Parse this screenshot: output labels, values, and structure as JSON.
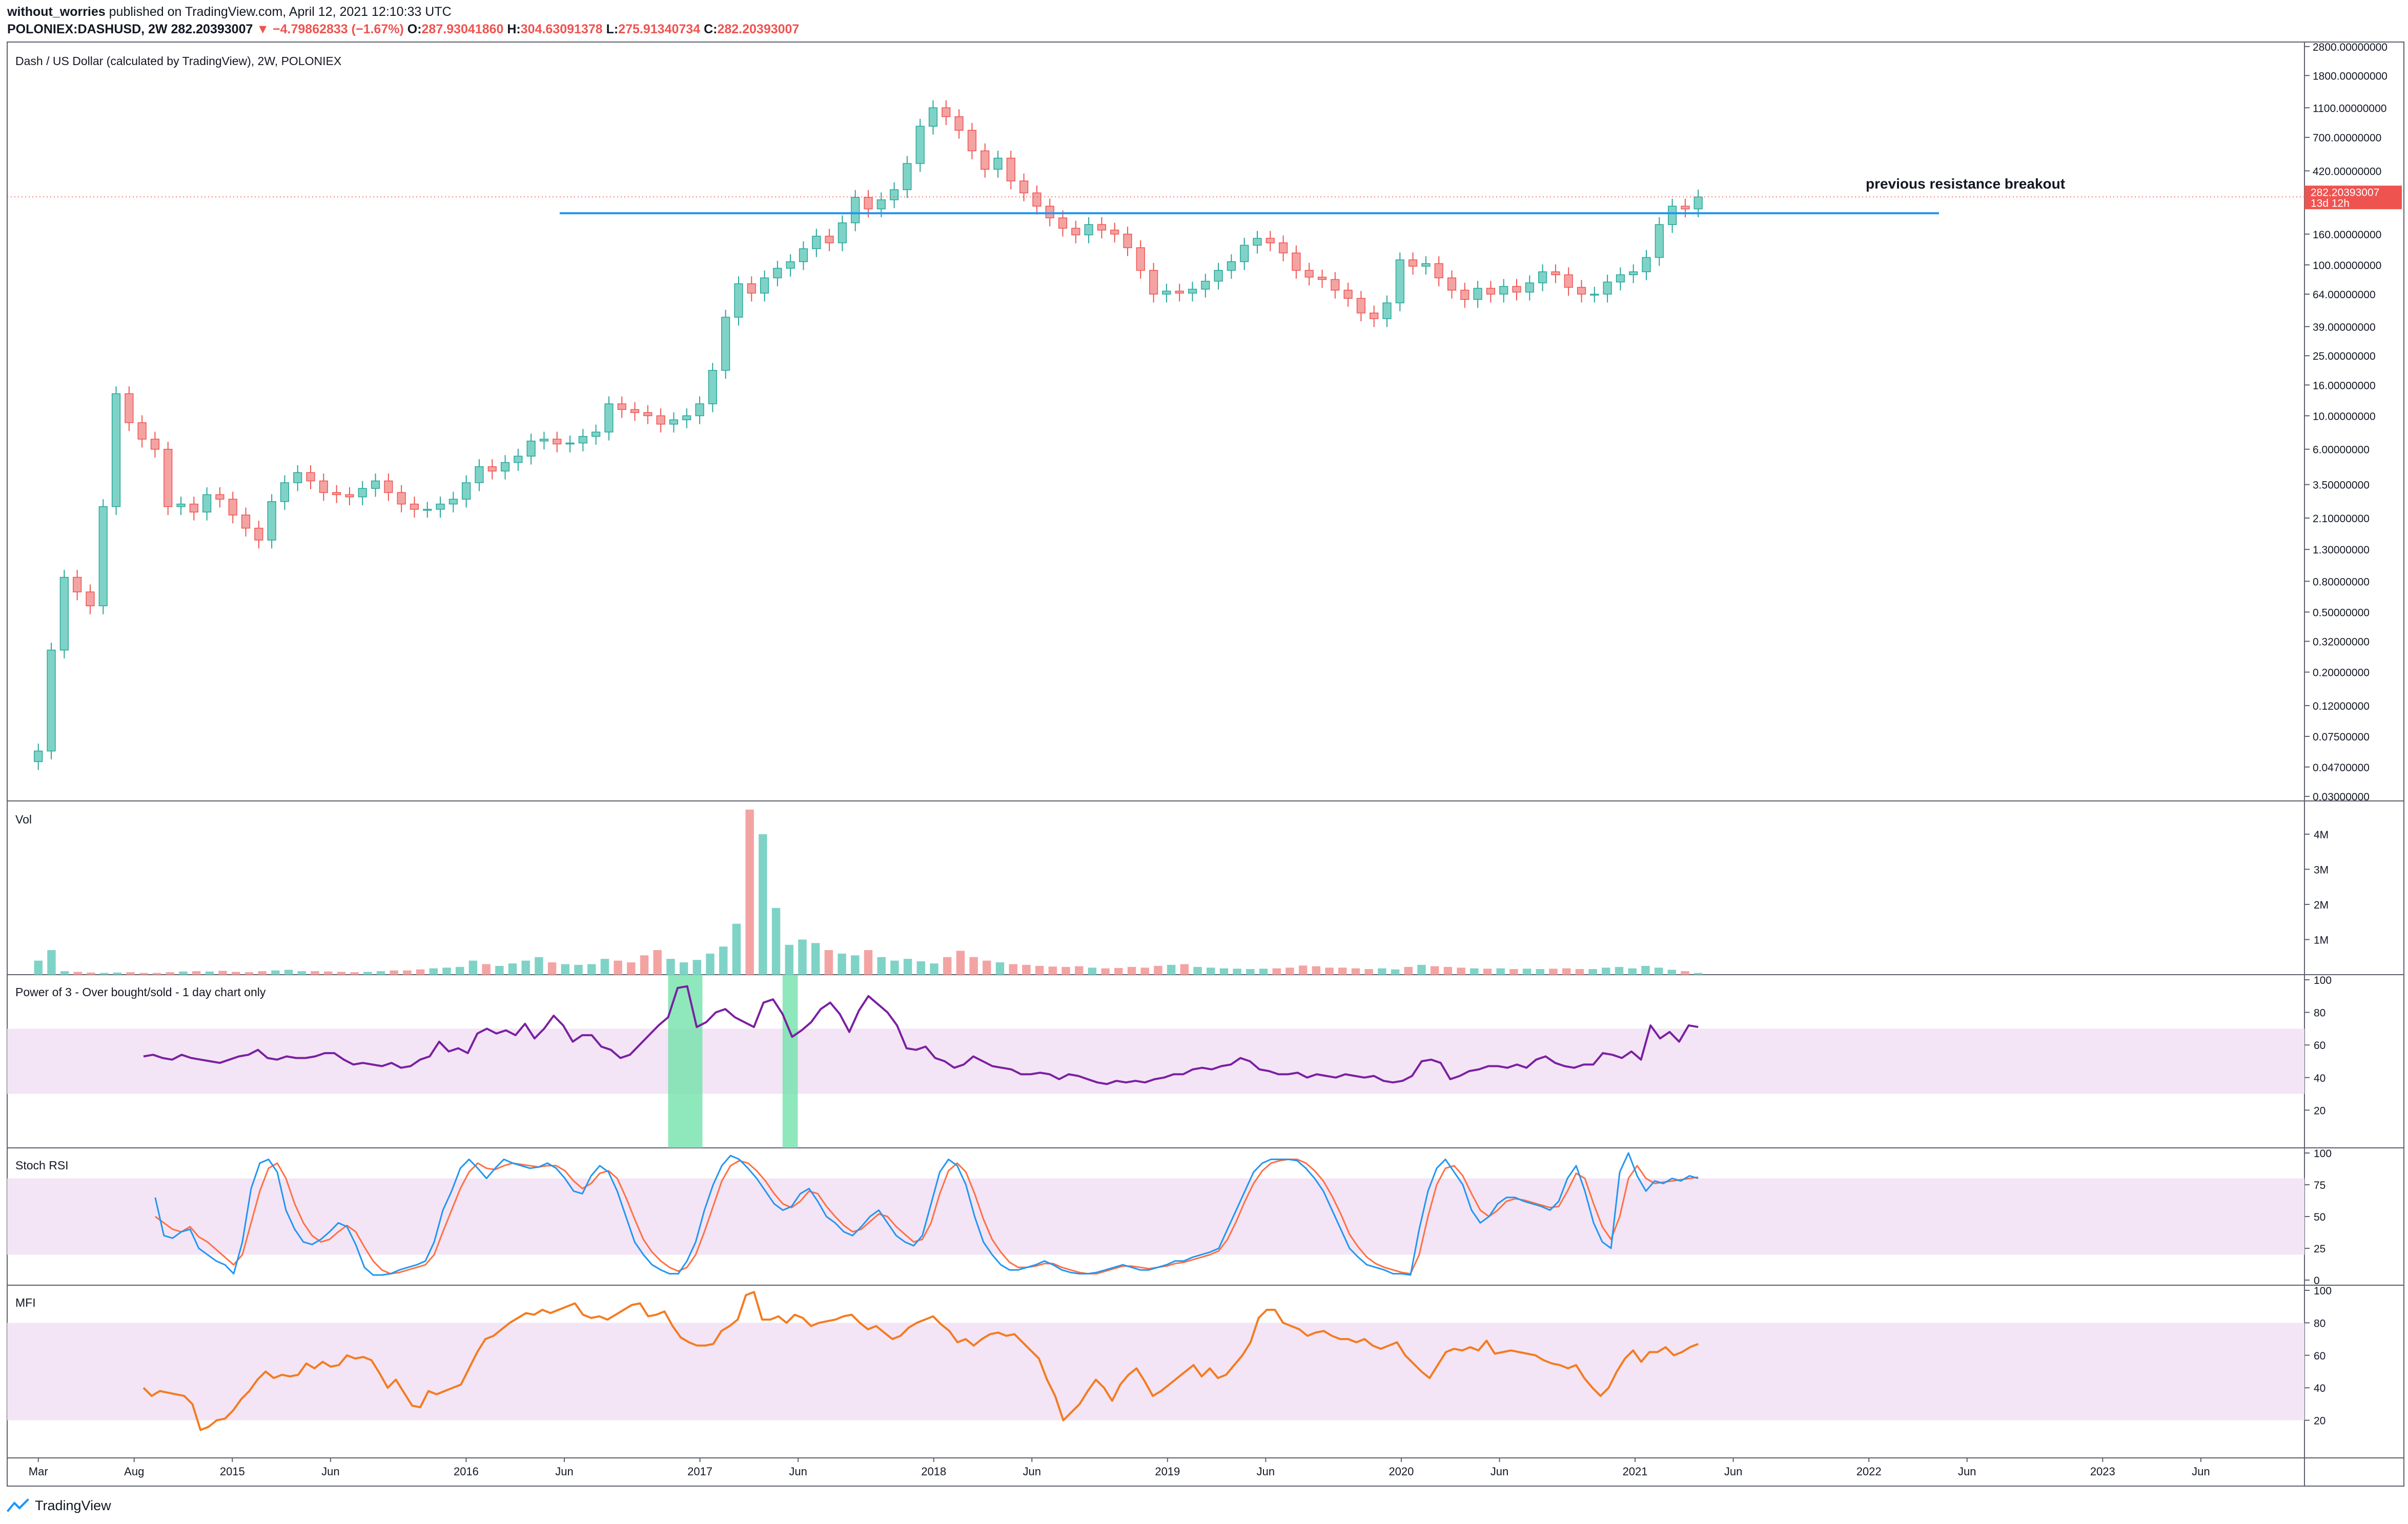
{
  "header": {
    "author": "without_worries",
    "published": "published on TradingView.com, April 12, 2021 12:10:33 UTC",
    "symbol": "POLONIEX:DASHUSD, 2W",
    "price": "282.20393007",
    "change": "−4.79862833 (−1.67%)",
    "o_label": "O:",
    "o": "287.93041860",
    "h_label": "H:",
    "h": "304.63091378",
    "l_label": "L:",
    "l": "275.91340734",
    "c_label": "C:",
    "c": "282.20393007"
  },
  "footer": {
    "brand": "TradingView"
  },
  "colors": {
    "up": "#26a69a",
    "down": "#ef5350",
    "up_fill": "#7fd3c6",
    "down_fill": "#f4a3a3",
    "resistance": "#2196f3",
    "pwr": "#7b1fa2",
    "stoch_k": "#2196f3",
    "stoch_d": "#ff7043",
    "mfi": "#f47b20",
    "band": "#f3e5f5",
    "highlight": "#69e0a4"
  },
  "chart_data": [
    {
      "type": "candlestick",
      "title": "Dash / US Dollar (calculated by TradingView), 2W, POLONIEX",
      "y_scale": "log",
      "y_ticks": [
        "2800.00000000",
        "1800.00000000",
        "1100.00000000",
        "700.00000000",
        "420.00000000",
        "260.00000000",
        "160.00000000",
        "100.00000000",
        "64.00000000",
        "39.00000000",
        "25.00000000",
        "16.00000000",
        "10.00000000",
        "6.00000000",
        "3.50000000",
        "2.10000000",
        "1.30000000",
        "0.80000000",
        "0.50000000",
        "0.32000000",
        "0.20000000",
        "0.12000000",
        "0.07500000",
        "0.04700000",
        "0.03000000"
      ],
      "last_price_label": "282.20393007",
      "countdown_label": "13d 12h",
      "annotation": "previous resistance breakout",
      "resistance_level": 220,
      "x_range": [
        "2014-02",
        "2023-10"
      ],
      "x_ticks": [
        "Mar",
        "Aug",
        "2015",
        "Jun",
        "2016",
        "Jun",
        "2017",
        "Jun",
        "2018",
        "Jun",
        "2019",
        "Jun",
        "2020",
        "Jun",
        "2021",
        "Jun",
        "2022",
        "Jun",
        "2023",
        "Jun"
      ],
      "closes": [
        0.06,
        0.28,
        0.85,
        0.68,
        0.55,
        2.5,
        14,
        9,
        7,
        6,
        2.5,
        2.6,
        2.3,
        3,
        2.8,
        2.2,
        1.8,
        1.5,
        2.7,
        3.6,
        4.2,
        3.7,
        3.1,
        3,
        2.9,
        3.3,
        3.7,
        3.1,
        2.6,
        2.4,
        2.4,
        2.6,
        2.8,
        3.6,
        4.6,
        4.3,
        4.9,
        5.4,
        6.8,
        7,
        6.5,
        6.6,
        7.3,
        7.8,
        12,
        11,
        10.5,
        10,
        8.8,
        9.4,
        10,
        12,
        20,
        45,
        75,
        65,
        82,
        95,
        105,
        128,
        155,
        140,
        190,
        280,
        235,
        270,
        315,
        470,
        830,
        1100,
        960,
        780,
        570,
        430,
        510,
        360,
        300,
        245,
        205,
        175,
        158,
        185,
        170,
        160,
        130,
        92,
        64,
        67,
        65,
        69,
        78,
        92,
        105,
        135,
        150,
        140,
        120,
        92,
        83,
        80,
        68,
        60,
        48,
        44,
        56,
        108,
        98,
        102,
        82,
        68,
        59,
        70,
        64,
        72,
        66,
        76,
        90,
        86,
        71,
        64,
        64,
        77,
        86,
        90,
        112,
        185,
        245,
        235,
        282
      ],
      "opens_shift_note": "open of each candle = previous close",
      "wick_pct": 0.12
    },
    {
      "type": "bar",
      "title": "Vol",
      "y_ticks": [
        "4M",
        "3M",
        "2M",
        "1M"
      ],
      "values_m": [
        0.4,
        0.7,
        0.1,
        0.08,
        0.06,
        0.05,
        0.06,
        0.07,
        0.05,
        0.05,
        0.07,
        0.09,
        0.1,
        0.09,
        0.11,
        0.08,
        0.07,
        0.1,
        0.12,
        0.14,
        0.1,
        0.1,
        0.09,
        0.08,
        0.07,
        0.08,
        0.1,
        0.12,
        0.12,
        0.15,
        0.18,
        0.2,
        0.22,
        0.4,
        0.3,
        0.25,
        0.32,
        0.4,
        0.5,
        0.35,
        0.3,
        0.28,
        0.3,
        0.45,
        0.4,
        0.35,
        0.55,
        0.7,
        0.45,
        0.35,
        0.42,
        0.6,
        0.8,
        1.45,
        4.7,
        4.0,
        1.9,
        0.85,
        1.0,
        0.9,
        0.7,
        0.6,
        0.55,
        0.7,
        0.5,
        0.4,
        0.45,
        0.38,
        0.32,
        0.5,
        0.68,
        0.5,
        0.4,
        0.35,
        0.3,
        0.28,
        0.25,
        0.23,
        0.22,
        0.24,
        0.2,
        0.18,
        0.19,
        0.22,
        0.2,
        0.25,
        0.28,
        0.3,
        0.22,
        0.2,
        0.18,
        0.17,
        0.16,
        0.17,
        0.18,
        0.2,
        0.26,
        0.24,
        0.2,
        0.2,
        0.18,
        0.16,
        0.18,
        0.15,
        0.22,
        0.28,
        0.24,
        0.22,
        0.2,
        0.18,
        0.17,
        0.18,
        0.16,
        0.17,
        0.16,
        0.17,
        0.18,
        0.16,
        0.16,
        0.2,
        0.22,
        0.18,
        0.25,
        0.2,
        0.14,
        0.1,
        0.05
      ]
    },
    {
      "type": "line",
      "title": "Power of 3 - Over bought/sold - 1 day chart only",
      "y_ticks": [
        "100",
        "80",
        "60",
        "40",
        "20"
      ],
      "band": [
        30,
        70
      ],
      "values": [
        53,
        54,
        52,
        51,
        54,
        52,
        51,
        50,
        49,
        51,
        53,
        54,
        57,
        52,
        51,
        53,
        52,
        52,
        53,
        55,
        55,
        51,
        48,
        49,
        48,
        47,
        49,
        46,
        47,
        51,
        53,
        62,
        56,
        58,
        55,
        67,
        70,
        67,
        69,
        66,
        73,
        64,
        70,
        78,
        72,
        62,
        66,
        66,
        59,
        57,
        52,
        54,
        60,
        66,
        72,
        77,
        95,
        96,
        71,
        74,
        80,
        82,
        77,
        74,
        71,
        86,
        88,
        79,
        65,
        69,
        74,
        82,
        86,
        79,
        68,
        81,
        90,
        85,
        80,
        72,
        58,
        57,
        59,
        52,
        50,
        46,
        48,
        53,
        50,
        47,
        46,
        45,
        42,
        42,
        43,
        42,
        39,
        42,
        41,
        39,
        37,
        36,
        38,
        37,
        38,
        37,
        39,
        40,
        42,
        42,
        45,
        46,
        45,
        47,
        48,
        52,
        50,
        45,
        44,
        42,
        42,
        43,
        40,
        42,
        41,
        40,
        42,
        41,
        40,
        41,
        38,
        37,
        38,
        41,
        50,
        51,
        49,
        39,
        41,
        44,
        45,
        47,
        47,
        46,
        48,
        46,
        51,
        53,
        49,
        47,
        46,
        48,
        48,
        55,
        54,
        52,
        56,
        51,
        72,
        64,
        68,
        62,
        72,
        71
      ],
      "highlight_ranges": [
        [
          55,
          58
        ],
        [
          67,
          68
        ]
      ]
    },
    {
      "type": "line",
      "title": "Stoch RSI",
      "y_ticks": [
        "100",
        "75",
        "50",
        "25",
        "0"
      ],
      "band": [
        20,
        80
      ],
      "series": [
        {
          "values": [
            65,
            35,
            33,
            38,
            40,
            25,
            20,
            15,
            12,
            5,
            30,
            72,
            92,
            95,
            85,
            55,
            40,
            30,
            28,
            32,
            38,
            45,
            42,
            28,
            10,
            4,
            4,
            5,
            8,
            10,
            12,
            15,
            30,
            55,
            70,
            88,
            95,
            88,
            80,
            88,
            95,
            92,
            90,
            88,
            89,
            92,
            88,
            80,
            70,
            68,
            82,
            90,
            85,
            70,
            50,
            30,
            20,
            12,
            8,
            5,
            5,
            15,
            30,
            55,
            75,
            90,
            98,
            95,
            88,
            80,
            70,
            60,
            55,
            58,
            68,
            72,
            62,
            50,
            45,
            38,
            35,
            42,
            50,
            55,
            45,
            35,
            30,
            27,
            35,
            60,
            85,
            95,
            90,
            75,
            50,
            30,
            20,
            12,
            8,
            8,
            10,
            12,
            15,
            12,
            8,
            6,
            5,
            5,
            6,
            8,
            10,
            12,
            10,
            8,
            8,
            10,
            12,
            15,
            15,
            18,
            20,
            22,
            25,
            40,
            55,
            70,
            85,
            92,
            95,
            95,
            95,
            94,
            88,
            80,
            70,
            55,
            40,
            25,
            18,
            12,
            10,
            8,
            5,
            5,
            4,
            40,
            70,
            88,
            95,
            85,
            75,
            55,
            45,
            50,
            60,
            65,
            65,
            62,
            60,
            58,
            55,
            62,
            80,
            90,
            70,
            45,
            30,
            25,
            85,
            100,
            82,
            70,
            78,
            76,
            80,
            78,
            82,
            80
          ]
        },
        {
          "values": [
            50,
            45,
            40,
            38,
            42,
            34,
            30,
            24,
            18,
            12,
            20,
            45,
            70,
            88,
            92,
            80,
            60,
            45,
            35,
            30,
            32,
            38,
            43,
            38,
            26,
            15,
            8,
            5,
            6,
            8,
            10,
            12,
            20,
            38,
            55,
            72,
            85,
            92,
            88,
            87,
            90,
            92,
            91,
            90,
            89,
            90,
            90,
            86,
            78,
            72,
            76,
            84,
            86,
            80,
            65,
            48,
            32,
            22,
            15,
            10,
            7,
            10,
            20,
            38,
            58,
            78,
            90,
            94,
            92,
            86,
            78,
            68,
            60,
            57,
            62,
            70,
            68,
            58,
            50,
            43,
            38,
            40,
            46,
            52,
            50,
            42,
            36,
            30,
            32,
            45,
            68,
            86,
            92,
            85,
            68,
            48,
            32,
            22,
            14,
            10,
            10,
            11,
            13,
            13,
            10,
            8,
            6,
            5,
            5,
            7,
            9,
            11,
            11,
            10,
            9,
            10,
            11,
            13,
            14,
            16,
            18,
            20,
            23,
            32,
            46,
            62,
            76,
            86,
            92,
            94,
            95,
            95,
            92,
            86,
            78,
            66,
            52,
            36,
            26,
            18,
            13,
            10,
            8,
            6,
            5,
            20,
            50,
            75,
            88,
            90,
            82,
            68,
            55,
            50,
            55,
            62,
            64,
            63,
            61,
            59,
            57,
            58,
            70,
            84,
            80,
            60,
            42,
            32,
            50,
            80,
            90,
            80,
            76,
            77,
            78,
            79,
            80,
            81
          ]
        }
      ]
    },
    {
      "type": "line",
      "title": "MFI",
      "y_ticks": [
        "100",
        "80",
        "60",
        "40",
        "20"
      ],
      "band": [
        20,
        80
      ],
      "values": [
        40,
        35,
        38,
        37,
        36,
        35,
        30,
        14,
        16,
        20,
        21,
        26,
        33,
        38,
        45,
        50,
        46,
        48,
        47,
        48,
        55,
        52,
        56,
        53,
        54,
        60,
        58,
        59,
        57,
        49,
        40,
        45,
        37,
        29,
        28,
        38,
        36,
        38,
        40,
        42,
        52,
        62,
        70,
        72,
        76,
        80,
        83,
        86,
        85,
        88,
        86,
        88,
        90,
        92,
        85,
        83,
        84,
        82,
        85,
        88,
        91,
        92,
        84,
        85,
        87,
        78,
        71,
        68,
        66,
        66,
        67,
        75,
        78,
        82,
        97,
        99,
        82,
        82,
        84,
        80,
        85,
        83,
        78,
        80,
        81,
        82,
        84,
        85,
        80,
        76,
        78,
        74,
        70,
        72,
        77,
        80,
        82,
        84,
        79,
        75,
        68,
        70,
        66,
        70,
        73,
        74,
        72,
        73,
        68,
        63,
        58,
        45,
        35,
        20,
        25,
        30,
        38,
        45,
        40,
        32,
        42,
        48,
        52,
        44,
        35,
        38,
        42,
        46,
        50,
        54,
        47,
        52,
        46,
        48,
        54,
        60,
        68,
        83,
        88,
        88,
        80,
        78,
        76,
        72,
        74,
        75,
        72,
        70,
        70,
        68,
        70,
        66,
        64,
        66,
        68,
        60,
        55,
        50,
        46,
        54,
        62,
        64,
        63,
        65,
        63,
        69,
        61,
        62,
        63,
        62,
        61,
        60,
        57,
        55,
        54,
        52,
        54,
        46,
        40,
        35,
        40,
        50,
        58,
        63,
        56,
        62,
        62,
        65,
        60,
        62,
        65,
        67
      ]
    }
  ]
}
